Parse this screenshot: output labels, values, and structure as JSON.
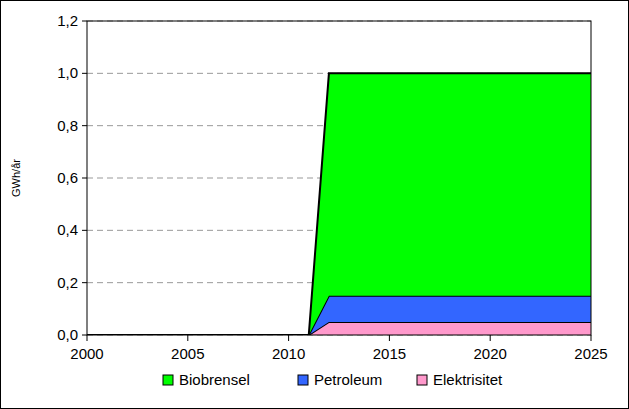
{
  "chart_data": {
    "type": "area",
    "stacked": true,
    "y_label": "GWh/år",
    "x": [
      2000,
      2011,
      2012,
      2025
    ],
    "series": [
      {
        "name": "Biobrensel",
        "color": "#00ff00",
        "values": [
          0,
          0,
          0.85,
          0.85
        ]
      },
      {
        "name": "Petroleum",
        "color": "#3366ff",
        "values": [
          0,
          0,
          0.1,
          0.1
        ]
      },
      {
        "name": "Elektrisitet",
        "color": "#ff99cc",
        "values": [
          0,
          0,
          0.05,
          0.05
        ]
      }
    ],
    "xlim": [
      2000,
      2025
    ],
    "xticks": [
      2000,
      2005,
      2010,
      2015,
      2020,
      2025
    ],
    "ylim": [
      0,
      1.2
    ],
    "yticks": [
      {
        "value": 0,
        "label": "0,0"
      },
      {
        "value": 0.2,
        "label": "0,2"
      },
      {
        "value": 0.4,
        "label": "0,4"
      },
      {
        "value": 0.6,
        "label": "0,6"
      },
      {
        "value": 0.8,
        "label": "0,8"
      },
      {
        "value": 1.0,
        "label": "1,0"
      },
      {
        "value": 1.2,
        "label": "1,2"
      }
    ],
    "grid": true,
    "legend": "bottom"
  }
}
